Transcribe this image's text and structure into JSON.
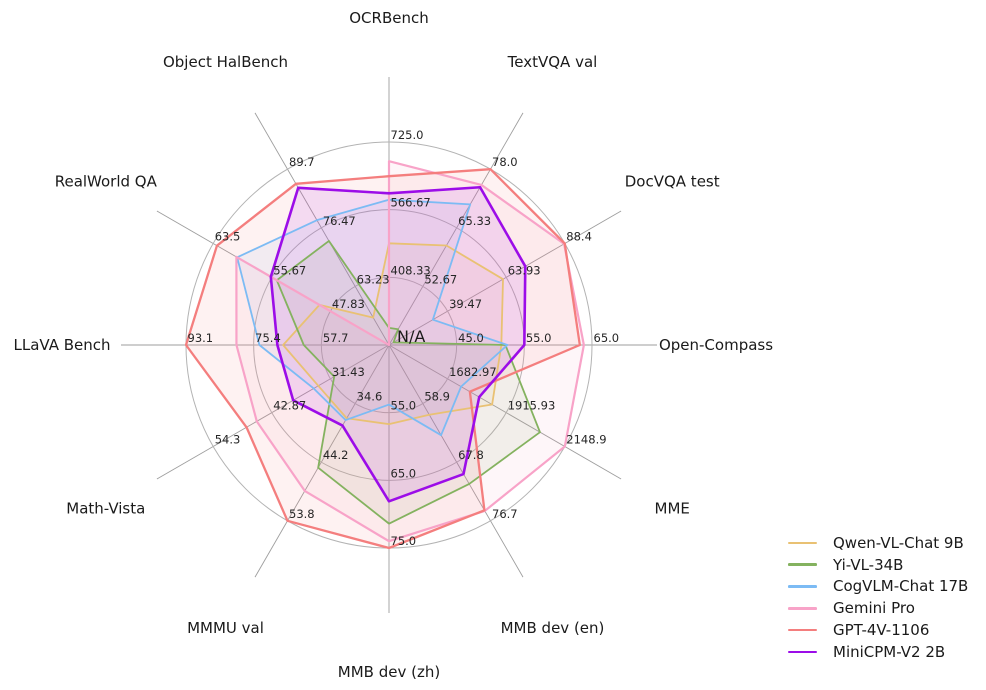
{
  "chart_data": {
    "type": "radar",
    "title": "",
    "center_label": "N/A",
    "grid": true,
    "ring_fractions": [
      0.3333,
      0.6667,
      1.0
    ],
    "axes_order": "clockwise-from-top",
    "legend_position": "lower-right",
    "colors": {
      "background": "#ffffff",
      "grid_ring": "#b3b3b3",
      "spoke": "#9e9e9e",
      "tick_text": "#262626",
      "title_text": "#1a1a1a"
    },
    "axes": [
      {
        "label": "OCRBench",
        "ticks": [
          "725.0",
          "566.67",
          "408.33"
        ]
      },
      {
        "label": "TextVQA val",
        "ticks": [
          "78.0",
          "65.33",
          "52.67"
        ]
      },
      {
        "label": "DocVQA test",
        "ticks": [
          "88.4",
          "63.93",
          "39.47"
        ]
      },
      {
        "label": "Open-Compass",
        "ticks": [
          "65.0",
          "55.0",
          "45.0"
        ]
      },
      {
        "label": "MME",
        "ticks": [
          "2148.9",
          "1915.93",
          "1682.97"
        ]
      },
      {
        "label": "MMB dev (en)",
        "ticks": [
          "76.7",
          "67.8",
          "58.9"
        ]
      },
      {
        "label": "MMB dev (zh)",
        "ticks": [
          "75.0",
          "65.0",
          "55.0"
        ]
      },
      {
        "label": "MMMU val",
        "ticks": [
          "53.8",
          "44.2",
          "34.6"
        ]
      },
      {
        "label": "Math-Vista",
        "ticks": [
          "54.3",
          "42.87",
          "31.43"
        ]
      },
      {
        "label": "LLaVA Bench",
        "ticks": [
          "93.1",
          "75.4",
          "57.7"
        ]
      },
      {
        "label": "RealWorld QA",
        "ticks": [
          "63.5",
          "55.67",
          "47.83"
        ]
      },
      {
        "label": "Object HalBench",
        "ticks": [
          "89.7",
          "76.47",
          "63.23"
        ]
      }
    ],
    "series": [
      {
        "name": "Qwen-VL-Chat 9B",
        "color": "#e9c173",
        "line_width": 1.8,
        "values": [
          488,
          61.5,
          62.6,
          51.6,
          1860.0,
          60.6,
          56.7,
          37.0,
          33.8,
          67.7,
          49.3,
          56.2
        ]
      },
      {
        "name": "Yi-VL-34B",
        "color": "#84b25f",
        "line_width": 1.8,
        "values": [
          290,
          43.4,
          16.9,
          52.2,
          2050.2,
          71.1,
          71.4,
          45.1,
          30.7,
          62.3,
          55.0,
          73.5
        ]
      },
      {
        "name": "CogVLM-Chat 17B",
        "color": "#7cbbf4",
        "line_width": 1.8,
        "values": [
          590,
          70.4,
          33.3,
          52.5,
          1736.6,
          63.7,
          53.8,
          37.3,
          34.7,
          73.9,
          60.3,
          78.2
        ]
      },
      {
        "name": "Gemini Pro",
        "color": "#f8a3c8",
        "line_width": 2.2,
        "values": [
          680,
          74.6,
          88.1,
          63.8,
          2148.9,
          75.2,
          74.0,
          48.9,
          45.8,
          79.9,
          60.4,
          null
        ]
      },
      {
        "name": "GPT-4V-1106",
        "color": "#f47e7e",
        "line_width": 2.3,
        "values": [
          645,
          78.0,
          88.4,
          63.2,
          1771.5,
          75.1,
          75.0,
          53.8,
          47.8,
          93.1,
          63.0,
          86.4
        ]
      },
      {
        "name": "MiniCPM-V2 2B",
        "color": "#9c0de8",
        "line_width": 2.6,
        "values": [
          605,
          74.1,
          71.9,
          55.0,
          1808.6,
          69.6,
          68.1,
          38.2,
          38.7,
          69.2,
          55.8,
          85.5
        ]
      }
    ]
  }
}
